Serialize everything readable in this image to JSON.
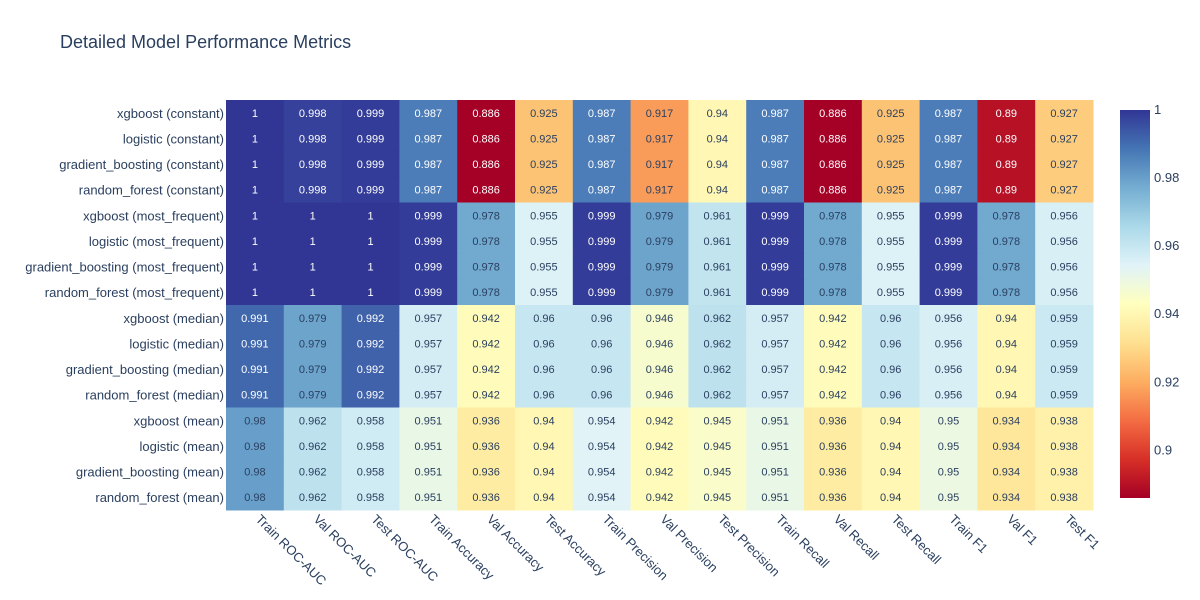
{
  "chart_data": {
    "type": "heatmap",
    "title": "Detailed Model Performance Metrics",
    "x": [
      "Train ROC-AUC",
      "Val ROC-AUC",
      "Test ROC-AUC",
      "Train Accuracy",
      "Val Accuracy",
      "Test Accuracy",
      "Train Precision",
      "Val Precision",
      "Test Precision",
      "Train Recall",
      "Val Recall",
      "Test Recall",
      "Train F1",
      "Val F1",
      "Test F1"
    ],
    "y": [
      "xgboost (constant)",
      "logistic (constant)",
      "gradient_boosting (constant)",
      "random_forest (constant)",
      "xgboost (most_frequent)",
      "logistic (most_frequent)",
      "gradient_boosting (most_frequent)",
      "random_forest (most_frequent)",
      "xgboost (median)",
      "logistic (median)",
      "gradient_boosting (median)",
      "random_forest (median)",
      "xgboost (mean)",
      "logistic (mean)",
      "gradient_boosting (mean)",
      "random_forest (mean)"
    ],
    "z": [
      [
        1,
        0.998,
        0.999,
        0.987,
        0.886,
        0.925,
        0.987,
        0.917,
        0.94,
        0.987,
        0.886,
        0.925,
        0.987,
        0.89,
        0.927
      ],
      [
        1,
        0.998,
        0.999,
        0.987,
        0.886,
        0.925,
        0.987,
        0.917,
        0.94,
        0.987,
        0.886,
        0.925,
        0.987,
        0.89,
        0.927
      ],
      [
        1,
        0.998,
        0.999,
        0.987,
        0.886,
        0.925,
        0.987,
        0.917,
        0.94,
        0.987,
        0.886,
        0.925,
        0.987,
        0.89,
        0.927
      ],
      [
        1,
        0.998,
        0.999,
        0.987,
        0.886,
        0.925,
        0.987,
        0.917,
        0.94,
        0.987,
        0.886,
        0.925,
        0.987,
        0.89,
        0.927
      ],
      [
        1,
        1,
        1,
        0.999,
        0.978,
        0.955,
        0.999,
        0.979,
        0.961,
        0.999,
        0.978,
        0.955,
        0.999,
        0.978,
        0.956
      ],
      [
        1,
        1,
        1,
        0.999,
        0.978,
        0.955,
        0.999,
        0.979,
        0.961,
        0.999,
        0.978,
        0.955,
        0.999,
        0.978,
        0.956
      ],
      [
        1,
        1,
        1,
        0.999,
        0.978,
        0.955,
        0.999,
        0.979,
        0.961,
        0.999,
        0.978,
        0.955,
        0.999,
        0.978,
        0.956
      ],
      [
        1,
        1,
        1,
        0.999,
        0.978,
        0.955,
        0.999,
        0.979,
        0.961,
        0.999,
        0.978,
        0.955,
        0.999,
        0.978,
        0.956
      ],
      [
        0.991,
        0.979,
        0.992,
        0.957,
        0.942,
        0.96,
        0.96,
        0.946,
        0.962,
        0.957,
        0.942,
        0.96,
        0.956,
        0.94,
        0.959
      ],
      [
        0.991,
        0.979,
        0.992,
        0.957,
        0.942,
        0.96,
        0.96,
        0.946,
        0.962,
        0.957,
        0.942,
        0.96,
        0.956,
        0.94,
        0.959
      ],
      [
        0.991,
        0.979,
        0.992,
        0.957,
        0.942,
        0.96,
        0.96,
        0.946,
        0.962,
        0.957,
        0.942,
        0.96,
        0.956,
        0.94,
        0.959
      ],
      [
        0.991,
        0.979,
        0.992,
        0.957,
        0.942,
        0.96,
        0.96,
        0.946,
        0.962,
        0.957,
        0.942,
        0.96,
        0.956,
        0.94,
        0.959
      ],
      [
        0.98,
        0.962,
        0.958,
        0.951,
        0.936,
        0.94,
        0.954,
        0.942,
        0.945,
        0.951,
        0.936,
        0.94,
        0.95,
        0.934,
        0.938
      ],
      [
        0.98,
        0.962,
        0.958,
        0.951,
        0.936,
        0.94,
        0.954,
        0.942,
        0.945,
        0.951,
        0.936,
        0.94,
        0.95,
        0.934,
        0.938
      ],
      [
        0.98,
        0.962,
        0.958,
        0.951,
        0.936,
        0.94,
        0.954,
        0.942,
        0.945,
        0.951,
        0.936,
        0.94,
        0.95,
        0.934,
        0.938
      ],
      [
        0.98,
        0.962,
        0.958,
        0.951,
        0.936,
        0.94,
        0.954,
        0.942,
        0.945,
        0.951,
        0.936,
        0.94,
        0.95,
        0.934,
        0.938
      ]
    ],
    "colorscale": "RdYlBu",
    "zmin": 0.886,
    "zmax": 1,
    "colorbar": {
      "ticks": [
        0.9,
        0.92,
        0.94,
        0.96,
        0.98,
        1
      ],
      "tick_labels": [
        "0.9",
        "0.92",
        "0.94",
        "0.96",
        "0.98",
        "1"
      ]
    },
    "x_label_rotation": "45deg clockwise"
  }
}
